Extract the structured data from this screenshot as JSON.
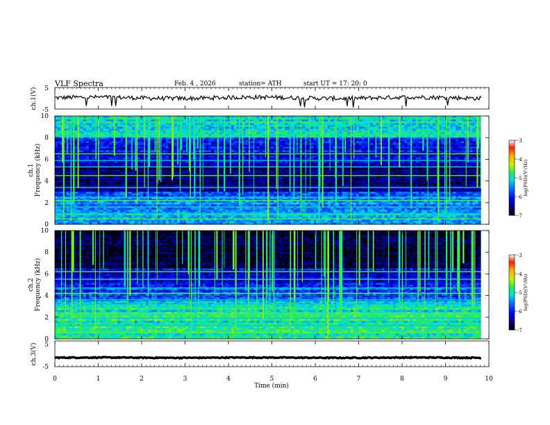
{
  "header": {
    "title": "VLF  Spectra",
    "date": "Feb. 4  , 2026",
    "station": "station= ATH",
    "start": "start  UT  =   17: 20: 0"
  },
  "chart_data": [
    {
      "type": "line",
      "ylabel": "ch.1(V)",
      "ylim": [
        -5,
        5
      ],
      "yticks": [
        -5,
        5
      ],
      "xlim": [
        0,
        10
      ],
      "baseline_mean": 0.2,
      "noise_amplitude": 1.0,
      "spikes_down_approx": 6,
      "color": "#000000"
    },
    {
      "type": "heatmap",
      "ylabel": "ch.1\nFrequency  (kHz)",
      "ylim": [
        0,
        10
      ],
      "yticks": [
        0,
        2,
        4,
        6,
        8,
        10
      ],
      "xlim": [
        0,
        10
      ],
      "colorbar": {
        "label": "log(PSD)(V²/Hz)",
        "ticks": [
          -3,
          -4,
          -5,
          -6,
          -7
        ],
        "range": [
          -7,
          -3
        ]
      },
      "bands": [
        {
          "f_from": 8.0,
          "f_to": 10.0,
          "level": -5.1
        },
        {
          "f_from": 6.5,
          "f_to": 8.0,
          "level": -6.0
        },
        {
          "f_from": 5.5,
          "f_to": 6.5,
          "level": -6.3
        },
        {
          "f_from": 3.0,
          "f_to": 5.5,
          "level": -6.6
        },
        {
          "f_from": 1.0,
          "f_to": 3.0,
          "level": -5.6
        },
        {
          "f_from": 0.0,
          "f_to": 1.0,
          "level": -5.2
        }
      ],
      "lines_khz": [
        0.5,
        1.0,
        1.6,
        2.2,
        2.5,
        3.4,
        4.5,
        5.3,
        5.9,
        6.5
      ],
      "sferics_per_min": 9
    },
    {
      "type": "heatmap",
      "ylabel": "ch.2\nFrequency  (kHz)",
      "ylim": [
        0,
        10
      ],
      "yticks": [
        0,
        2,
        4,
        6,
        8,
        10
      ],
      "xlim": [
        0,
        10
      ],
      "colorbar": {
        "label": "log(PSD)(V²/Hz)",
        "ticks": [
          -3,
          -4,
          -5,
          -6,
          -7
        ],
        "range": [
          -7,
          -3
        ]
      },
      "bands": [
        {
          "f_from": 6.5,
          "f_to": 10.0,
          "level": -6.8
        },
        {
          "f_from": 5.0,
          "f_to": 6.5,
          "level": -6.2
        },
        {
          "f_from": 3.5,
          "f_to": 5.0,
          "level": -5.8
        },
        {
          "f_from": 1.8,
          "f_to": 3.5,
          "level": -5.0
        },
        {
          "f_from": 0.0,
          "f_to": 1.8,
          "level": -4.9
        }
      ],
      "lines_khz": [
        0.6,
        1.2,
        1.9,
        2.3,
        3.2,
        3.6,
        4.2,
        4.7,
        5.5,
        6.2
      ],
      "sferics_per_min": 9
    },
    {
      "type": "line",
      "ylabel": "ch.3(V)",
      "ylim": [
        -5,
        5
      ],
      "yticks": [
        -5,
        5
      ],
      "xlim": [
        0,
        10
      ],
      "baseline_mean": -1.5,
      "noise_amplitude": 0.2,
      "color": "#000000"
    }
  ],
  "x_axis": {
    "label": "Time  (min)",
    "ticks": [
      "0",
      "1",
      "2",
      "3",
      "4",
      "5",
      "6",
      "7",
      "8",
      "9",
      "10"
    ],
    "data_end": 9.82
  }
}
